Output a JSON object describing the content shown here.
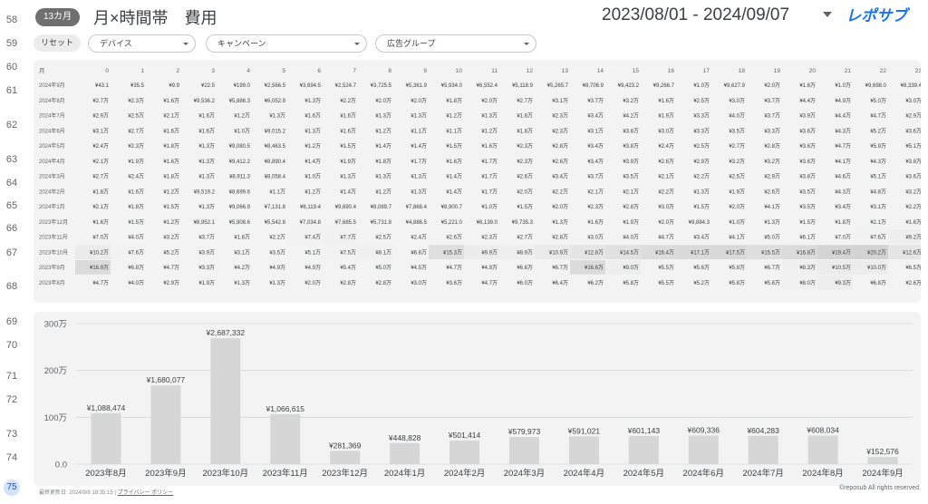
{
  "row_numbers": [
    {
      "label": "58",
      "active": false
    },
    {
      "label": "59",
      "active": false
    },
    {
      "label": "60",
      "active": false
    },
    {
      "label": "61",
      "active": false
    },
    {
      "label": "62",
      "active": false
    },
    {
      "label": "63",
      "active": false
    },
    {
      "label": "64",
      "active": false
    },
    {
      "label": "65",
      "active": false
    },
    {
      "label": "66",
      "active": false
    },
    {
      "label": "67",
      "active": false
    },
    {
      "label": "68",
      "active": false
    },
    {
      "label": "69",
      "active": false
    },
    {
      "label": "70",
      "active": false
    },
    {
      "label": "71",
      "active": false
    },
    {
      "label": "72",
      "active": false
    },
    {
      "label": "73",
      "active": false
    },
    {
      "label": "74",
      "active": false
    },
    {
      "label": "75",
      "active": true
    }
  ],
  "header": {
    "badge": "13カ月",
    "title": "月×時間帯　費用",
    "date_range": "2023/08/01 - 2024/09/07",
    "logo_text": "レポサブ",
    "accent_color": "#1a73e8"
  },
  "filters": {
    "reset_label": "リセット",
    "device": "デバイス",
    "campaign": "キャンペーン",
    "adgroup": "広告グループ"
  },
  "heatmap": {
    "corner_label": "月",
    "hours": [
      "0",
      "1",
      "2",
      "3",
      "4",
      "5",
      "6",
      "7",
      "8",
      "9",
      "10",
      "11",
      "12",
      "13",
      "14",
      "15",
      "16",
      "17",
      "18",
      "19",
      "20",
      "21",
      "22",
      "23"
    ],
    "rows": [
      {
        "month": "2024年9月",
        "cells": [
          "¥43.1",
          "¥35.5",
          "¥9.9",
          "¥22.5",
          "¥199.0",
          "¥2,566.5",
          "¥3,694.5",
          "¥2,524.7",
          "¥3,725.5",
          "¥5,361.9",
          "¥5,934.0",
          "¥6,552.4",
          "¥5,118.9",
          "¥5,265.7",
          "¥8,706.9",
          "¥9,423.2",
          "¥9,266.7",
          "¥1.0万",
          "¥9,627.9",
          "¥2.0万",
          "¥1.6万",
          "¥1.0万",
          "¥9,698.0",
          "¥8,339.4"
        ]
      },
      {
        "month": "2024年8月",
        "cells": [
          "¥2.7万",
          "¥2.3万",
          "¥1.6万",
          "¥9,536.2",
          "¥5,886.3",
          "¥6,052.9",
          "¥1.3万",
          "¥2.2万",
          "¥2.0万",
          "¥2.0万",
          "¥1.8万",
          "¥2.0万",
          "¥2.7万",
          "¥3.1万",
          "¥3.7万",
          "¥3.2万",
          "¥1.6万",
          "¥2.5万",
          "¥3.0万",
          "¥3.7万",
          "¥4.4万",
          "¥4.9万",
          "¥5.0万",
          "¥3.0万"
        ]
      },
      {
        "month": "2024年7月",
        "cells": [
          "¥2.9万",
          "¥2.5万",
          "¥2.1万",
          "¥1.6万",
          "¥1.2万",
          "¥1.3万",
          "¥1.6万",
          "¥1.6万",
          "¥1.3万",
          "¥1.3万",
          "¥1.2万",
          "¥1.3万",
          "¥1.8万",
          "¥2.3万",
          "¥3.4万",
          "¥4.2万",
          "¥1.9万",
          "¥3.3万",
          "¥4.0万",
          "¥3.7万",
          "¥3.9万",
          "¥4.4万",
          "¥4.7万",
          "¥2.9万"
        ]
      },
      {
        "month": "2024年6月",
        "cells": [
          "¥3.1万",
          "¥2.7万",
          "¥1.6万",
          "¥1.6万",
          "¥1.0万",
          "¥9,015.2",
          "¥1.3万",
          "¥1.6万",
          "¥1.2万",
          "¥1.1万",
          "¥1.1万",
          "¥1.2万",
          "¥1.8万",
          "¥2.3万",
          "¥3.1万",
          "¥3.8万",
          "¥3.0万",
          "¥3.3万",
          "¥3.5万",
          "¥3.3万",
          "¥3.6万",
          "¥4.3万",
          "¥5.2万",
          "¥3.6万"
        ]
      },
      {
        "month": "2024年5月",
        "cells": [
          "¥2.4万",
          "¥2.3万",
          "¥1.8万",
          "¥1.3万",
          "¥9,080.5",
          "¥8,463.5",
          "¥1.2万",
          "¥1.5万",
          "¥1.4万",
          "¥1.4万",
          "¥1.5万",
          "¥1.6万",
          "¥2.3万",
          "¥2.8万",
          "¥3.4万",
          "¥3.8万",
          "¥2.4万",
          "¥2.5万",
          "¥2.7万",
          "¥2.8万",
          "¥3.6万",
          "¥4.7万",
          "¥5.9万",
          "¥5.1万"
        ]
      },
      {
        "month": "2024年4月",
        "cells": [
          "¥2.1万",
          "¥1.9万",
          "¥1.6万",
          "¥1.3万",
          "¥9,412.2",
          "¥8,890.4",
          "¥1.4万",
          "¥1.9万",
          "¥1.8万",
          "¥1.7万",
          "¥1.6万",
          "¥1.7万",
          "¥2.3万",
          "¥2.6万",
          "¥3.4万",
          "¥3.9万",
          "¥2.6万",
          "¥2.9万",
          "¥3.2万",
          "¥3.2万",
          "¥3.6万",
          "¥4.1万",
          "¥4.3万",
          "¥3.8万"
        ]
      },
      {
        "month": "2024年3月",
        "cells": [
          "¥2.7万",
          "¥2.4万",
          "¥1.8万",
          "¥1.3万",
          "¥8,911.3",
          "¥8,058.4",
          "¥1.0万",
          "¥1.3万",
          "¥1.3万",
          "¥1.3万",
          "¥1.4万",
          "¥1.7万",
          "¥2.6万",
          "¥3.4万",
          "¥3.7万",
          "¥3.5万",
          "¥2.1万",
          "¥2.2万",
          "¥2.5万",
          "¥2.9万",
          "¥3.8万",
          "¥4.6万",
          "¥5.1万",
          "¥3.6万"
        ]
      },
      {
        "month": "2024年2月",
        "cells": [
          "¥1.8万",
          "¥1.6万",
          "¥1.2万",
          "¥9,519.2",
          "¥8,699.6",
          "¥1.1万",
          "¥1.2万",
          "¥1.4万",
          "¥1.2万",
          "¥1.3万",
          "¥1.4万",
          "¥1.7万",
          "¥2.0万",
          "¥2.2万",
          "¥2.1万",
          "¥2.1万",
          "¥2.2万",
          "¥1.3万",
          "¥1.9万",
          "¥2.6万",
          "¥3.5万",
          "¥4.3万",
          "¥4.8万",
          "¥3.2万"
        ]
      },
      {
        "month": "2024年1月",
        "cells": [
          "¥2.1万",
          "¥1.8万",
          "¥1.5万",
          "¥1.3万",
          "¥9,066.9",
          "¥7,131.8",
          "¥8,119.4",
          "¥9,690.4",
          "¥8,089.7",
          "¥7,868.4",
          "¥8,900.7",
          "¥1.0万",
          "¥1.5万",
          "¥2.0万",
          "¥2.3万",
          "¥2.8万",
          "¥3.0万",
          "¥1.5万",
          "¥2.0万",
          "¥4.1万",
          "¥3.5万",
          "¥3.4万",
          "¥3.1万",
          "¥2.2万"
        ]
      },
      {
        "month": "2023年12月",
        "cells": [
          "¥1.6万",
          "¥1.5万",
          "¥1.2万",
          "¥8,952.1",
          "¥5,908.6",
          "¥5,542.8",
          "¥7,034.8",
          "¥7,685.5",
          "¥5,731.8",
          "¥4,886.5",
          "¥5,221.0",
          "¥6,139.0",
          "¥9,735.3",
          "¥1.3万",
          "¥1.6万",
          "¥1.9万",
          "¥2.0万",
          "¥9,884.3",
          "¥1.0万",
          "¥1.3万",
          "¥1.5万",
          "¥1.8万",
          "¥2.1万",
          "¥1.6万"
        ]
      },
      {
        "month": "2023年11月",
        "cells": [
          "¥7.0万",
          "¥4.0万",
          "¥3.2万",
          "¥3.7万",
          "¥1.8万",
          "¥2.2万",
          "¥7.4万",
          "¥7.7万",
          "¥2.5万",
          "¥2.4万",
          "¥2.6万",
          "¥2.3万",
          "¥2.7万",
          "¥2.8万",
          "¥3.0万",
          "¥4.0万",
          "¥4.7万",
          "¥3.4万",
          "¥4.1万",
          "¥5.0万",
          "¥6.1万",
          "¥7.0万",
          "¥7.6万",
          "¥9.2万"
        ]
      },
      {
        "month": "2023年10月",
        "cells": [
          "¥10.2万",
          "¥7.6万",
          "¥5.2万",
          "¥3.9万",
          "¥3.1万",
          "¥3.5万",
          "¥5.1万",
          "¥7.5万",
          "¥8.1万",
          "¥6.8万",
          "¥15.3万",
          "¥9.9万",
          "¥8.9万",
          "¥10.9万",
          "¥12.8万",
          "¥14.5万",
          "¥16.4万",
          "¥17.1万",
          "¥17.5万",
          "¥15.5万",
          "¥16.8万",
          "¥19.4万",
          "¥20.2万",
          "¥12.6万"
        ]
      },
      {
        "month": "2023年9月",
        "cells": [
          "¥16.9万",
          "¥6.8万",
          "¥4.7万",
          "¥3.3万",
          "¥4.2万",
          "¥4.9万",
          "¥4.9万",
          "¥5.4万",
          "¥5.0万",
          "¥4.5万",
          "¥4.7万",
          "¥4.9万",
          "¥6.6万",
          "¥6.7万",
          "¥16.6万",
          "¥9.0万",
          "¥5.5万",
          "¥5.6万",
          "¥5.8万",
          "¥6.7万",
          "¥8.3万",
          "¥10.5万",
          "¥10.0万",
          "¥6.5万"
        ]
      },
      {
        "month": "2023年8月",
        "cells": [
          "¥4.7万",
          "¥4.0万",
          "¥2.9万",
          "¥1.9万",
          "¥1.3万",
          "¥1.3万",
          "¥2.0万",
          "¥2.8万",
          "¥2.8万",
          "¥3.0万",
          "¥3.6万",
          "¥4.7万",
          "¥6.0万",
          "¥6.4万",
          "¥6.2万",
          "¥5.8万",
          "¥5.5万",
          "¥5.2万",
          "¥5.8万",
          "¥5.8万",
          "¥8.0万",
          "¥9.3万",
          "¥6.8万",
          "¥2.6万"
        ]
      }
    ]
  },
  "chart_data": {
    "type": "bar",
    "categories": [
      "2023年8月",
      "2023年9月",
      "2023年10月",
      "2023年11月",
      "2023年12月",
      "2024年1月",
      "2024年2月",
      "2024年3月",
      "2024年4月",
      "2024年5月",
      "2024年6月",
      "2024年7月",
      "2024年8月",
      "2024年9月"
    ],
    "values": [
      1088474,
      1680077,
      2687332,
      1066615,
      281369,
      448828,
      501414,
      579973,
      591021,
      601143,
      609336,
      604283,
      608034,
      152576
    ],
    "value_labels": [
      "¥1,088,474",
      "¥1,680,077",
      "¥2,687,332",
      "¥1,066,615",
      "¥281,369",
      "¥448,828",
      "¥501,414",
      "¥579,973",
      "¥591,021",
      "¥601,143",
      "¥609,336",
      "¥604,283",
      "¥608,034",
      "¥152,576"
    ],
    "ylim": [
      0,
      3000000
    ],
    "yticks": [
      0,
      1000000,
      2000000,
      3000000
    ],
    "ytick_labels": [
      "0.0",
      "100万",
      "200万",
      "300万"
    ],
    "grid": true,
    "bar_color": "#d6d6d6"
  },
  "footer": {
    "updated": "最終更新日: 2024/9/8 18:35:15",
    "privacy": "プライバシー ポリシー",
    "copyright": "©reposub All rights reserved."
  }
}
